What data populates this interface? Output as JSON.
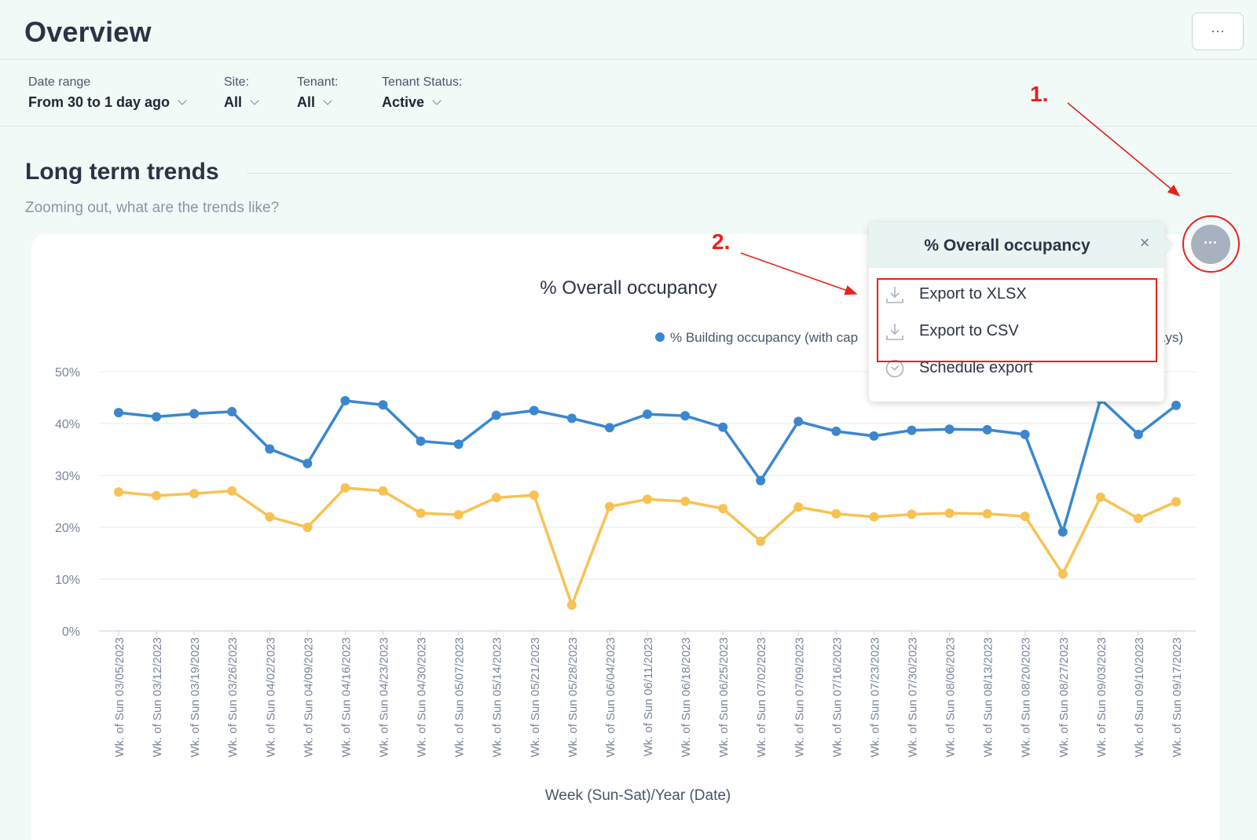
{
  "header": {
    "title": "Overview",
    "more_label": "···"
  },
  "filters": [
    {
      "label": "Date range",
      "value": "From 30 to 1 day ago"
    },
    {
      "label": "Site:",
      "value": "All"
    },
    {
      "label": "Tenant:",
      "value": "All"
    },
    {
      "label": "Tenant Status:",
      "value": "Active"
    }
  ],
  "section": {
    "title": "Long term trends",
    "subtitle": "Zooming out, what are the trends like?"
  },
  "widget": {
    "more_label": "···"
  },
  "popup": {
    "title": "% Overall occupancy",
    "close_label": "×",
    "items": [
      {
        "label": "Export to XLSX",
        "icon": "download-icon"
      },
      {
        "label": "Export to CSV",
        "icon": "download-icon"
      },
      {
        "label": "Schedule export",
        "icon": "clock-icon"
      }
    ]
  },
  "annotations": {
    "step1": "1.",
    "step2": "2.",
    "color": "#e5221b"
  },
  "colors": {
    "series_blue": "#3a87d0",
    "series_yellow": "#f8c253",
    "background": "#f2faf8"
  },
  "chart_data": {
    "type": "line",
    "title": "% Overall occupancy",
    "xlabel": "Week (Sun-Sat)/Year (Date)",
    "ylabel": "",
    "ylim": [
      0,
      50
    ],
    "yticks": [
      "0%",
      "10%",
      "20%",
      "30%",
      "40%",
      "50%"
    ],
    "legend_placement": "top-right",
    "categories": [
      "Wk. of Sun 03/05/2023",
      "Wk. of Sun 03/12/2023",
      "Wk. of Sun 03/19/2023",
      "Wk. of Sun 03/26/2023",
      "Wk. of Sun 04/02/2023",
      "Wk. of Sun 04/09/2023",
      "Wk. of Sun 04/16/2023",
      "Wk. of Sun 04/23/2023",
      "Wk. of Sun 04/30/2023",
      "Wk. of Sun 05/07/2023",
      "Wk. of Sun 05/14/2023",
      "Wk. of Sun 05/21/2023",
      "Wk. of Sun 05/28/2023",
      "Wk. of Sun 06/04/2023",
      "Wk. of Sun 06/11/2023",
      "Wk. of Sun 06/18/2023",
      "Wk. of Sun 06/25/2023",
      "Wk. of Sun 07/02/2023",
      "Wk. of Sun 07/09/2023",
      "Wk. of Sun 07/16/2023",
      "Wk. of Sun 07/23/2023",
      "Wk. of Sun 07/30/2023",
      "Wk. of Sun 08/06/2023",
      "Wk. of Sun 08/13/2023",
      "Wk. of Sun 08/20/2023",
      "Wk. of Sun 08/27/2023",
      "Wk. of Sun 09/03/2023",
      "Wk. of Sun 09/10/2023",
      "Wk. of Sun 09/17/2023"
    ],
    "series": [
      {
        "name": "% Building occupancy (with cap",
        "color": "#3a87d0",
        "values": [
          42.1,
          41.3,
          41.9,
          42.3,
          35.1,
          32.3,
          44.4,
          43.6,
          36.6,
          36.0,
          41.6,
          42.5,
          41.0,
          39.2,
          41.8,
          41.5,
          39.3,
          29.0,
          40.4,
          38.5,
          37.6,
          38.7,
          38.9,
          38.8,
          37.9,
          19.1,
          44.7,
          37.9,
          43.5
        ]
      },
      {
        "name": "ekdays)",
        "color": "#f8c253",
        "values": [
          26.8,
          26.1,
          26.5,
          27.0,
          22.0,
          20.0,
          27.6,
          27.0,
          22.7,
          22.4,
          25.7,
          26.2,
          5.0,
          24.0,
          25.4,
          25.0,
          23.6,
          17.3,
          23.9,
          22.6,
          22.0,
          22.5,
          22.7,
          22.6,
          22.1,
          11.0,
          25.8,
          21.7,
          24.9
        ]
      }
    ]
  }
}
